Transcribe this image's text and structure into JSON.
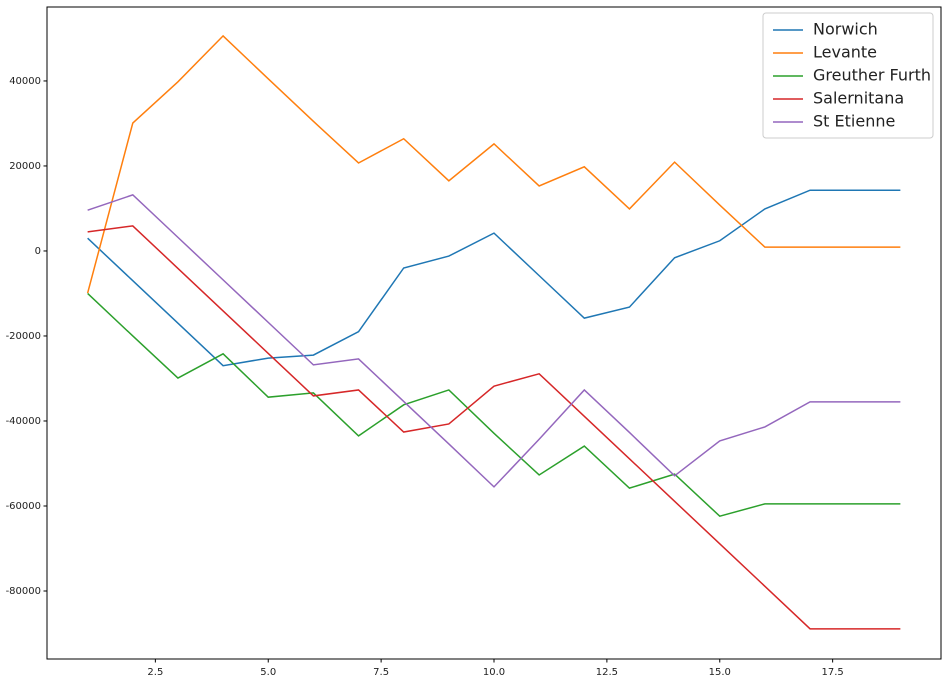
{
  "chart_data": {
    "type": "line",
    "x": [
      1,
      2,
      3,
      4,
      5,
      6,
      7,
      8,
      9,
      10,
      11,
      12,
      13,
      14,
      15,
      16,
      17,
      18,
      19
    ],
    "series": [
      {
        "name": "Norwich",
        "color": "#1f77b4",
        "values": [
          3000,
          -7000,
          -17000,
          -27000,
          -25200,
          -24500,
          -19000,
          -4000,
          -1200,
          4200,
          -5800,
          -15800,
          -13200,
          -1600,
          2400,
          9900,
          14300,
          14300,
          14300
        ]
      },
      {
        "name": "Levante",
        "color": "#ff7f0e",
        "values": [
          -9900,
          30100,
          39800,
          50600,
          40500,
          30500,
          20700,
          26400,
          16500,
          25200,
          15300,
          19800,
          9900,
          20900,
          10800,
          900,
          900,
          900,
          900
        ]
      },
      {
        "name": "Greuther Furth",
        "color": "#2ca02c",
        "values": [
          -10000,
          -20000,
          -29900,
          -24200,
          -34400,
          -33400,
          -43500,
          -36200,
          -32700,
          -42900,
          -52700,
          -45900,
          -55800,
          -52500,
          -62400,
          -59500,
          -59500,
          -59500,
          -59500
        ]
      },
      {
        "name": "Salernitana",
        "color": "#d62728",
        "values": [
          4500,
          5900,
          -4100,
          -14100,
          -24100,
          -34100,
          -32700,
          -42600,
          -40700,
          -31800,
          -28900,
          -38900,
          -48900,
          -58900,
          -68900,
          -78900,
          -88900,
          -88900,
          -88900
        ]
      },
      {
        "name": "St Etienne",
        "color": "#9467bd",
        "values": [
          9600,
          13200,
          3200,
          -6800,
          -16800,
          -26800,
          -25400,
          -35400,
          -45400,
          -55500,
          -44300,
          -32700,
          -42700,
          -52900,
          -44700,
          -41400,
          -35500,
          -35500,
          -35500
        ]
      }
    ],
    "xlim": [
      0.1,
      19.9
    ],
    "xticks": [
      2.5,
      {
        "value": 5,
        "label": "5.0"
      },
      7.5,
      {
        "value": 10,
        "label": "10.0"
      },
      12.5,
      {
        "value": 15,
        "label": "15.0"
      },
      17.5
    ],
    "ylim": [
      -96000,
      57400
    ],
    "yticks": [
      -80000,
      -60000,
      -40000,
      -20000,
      0,
      20000,
      40000
    ],
    "legend": "upper right"
  }
}
